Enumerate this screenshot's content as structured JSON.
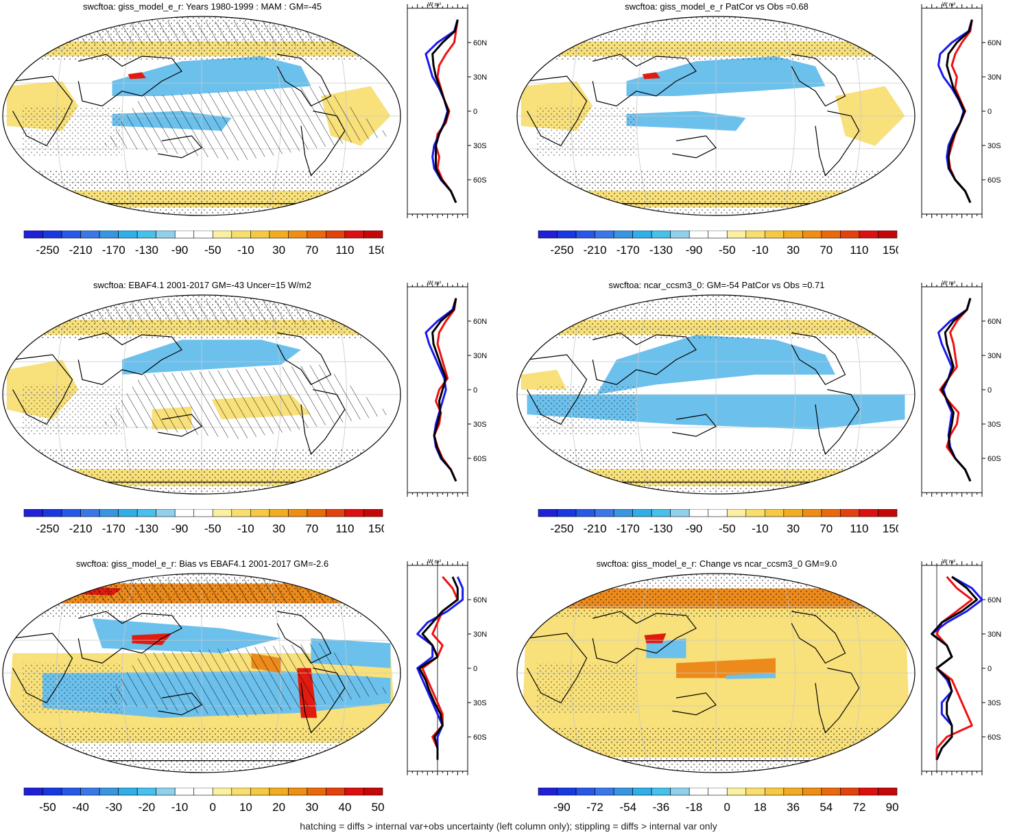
{
  "colors": {
    "scale": [
      "#2020d8",
      "#1838e0",
      "#2858e8",
      "#3a78e8",
      "#3896e0",
      "#30aee8",
      "#48c0ec",
      "#90d0ec",
      "#ffffff",
      "#ffffff",
      "#faf0a0",
      "#f8de6e",
      "#f6c844",
      "#f2ac22",
      "#ee8e12",
      "#e86a0c",
      "#e2420e",
      "#dc1010",
      "#c40808"
    ],
    "ocean_blue": "#6cc0ec",
    "land_yellow": "#f8e07a",
    "deep_orange": "#ec8a1c",
    "red": "#e01c10",
    "line_red": "#ee1010",
    "line_blue": "#1818ee",
    "line_black": "#000000",
    "grid": "#c8c8c8"
  },
  "zonal_unit": "W m²",
  "footer": "hatching = diffs > internal var+obs uncertainty (left column only); stippling = diffs > internal var only",
  "panels": [
    {
      "title": "swcftoa: giss_model_e_r: Years 1980-1999 : MAM : GM=-45",
      "map_style": "mean",
      "hatched": true,
      "colorbar_labels": [
        "-250",
        "-210",
        "-170",
        "-130",
        "-90",
        "-50",
        "-10",
        "30",
        "70",
        "110",
        "150"
      ],
      "zonal_xticks": [
        "-150",
        "-90",
        "-30"
      ],
      "zonal_xlim": [
        -150,
        30
      ],
      "zonal_yticks": [
        "60N",
        "30N",
        "0",
        "30S",
        "60S"
      ]
    },
    {
      "title": "swcftoa: giss_model_e_r PatCor vs Obs =0.68",
      "map_style": "mean",
      "hatched": false,
      "colorbar_labels": [
        "-250",
        "-210",
        "-170",
        "-130",
        "-90",
        "-50",
        "-10",
        "30",
        "70",
        "110",
        "150"
      ],
      "zonal_xticks": [
        "-150",
        "-90",
        "-30"
      ],
      "zonal_xlim": [
        -150,
        30
      ],
      "zonal_yticks": [
        "60N",
        "30N",
        "0",
        "30S",
        "60S"
      ]
    },
    {
      "title": "swcftoa: EBAF4.1 2001-2017 GM=-43 Uncer=15 W/m2",
      "map_style": "obs",
      "hatched": true,
      "colorbar_labels": [
        "-250",
        "-210",
        "-170",
        "-130",
        "-90",
        "-50",
        "-10",
        "30",
        "70",
        "110",
        "150"
      ],
      "zonal_xticks": [
        "-150",
        "-90",
        "-30"
      ],
      "zonal_xlim": [
        -150,
        30
      ],
      "zonal_yticks": [
        "60N",
        "30N",
        "0",
        "30S",
        "60S"
      ]
    },
    {
      "title": "swcftoa: ncar_ccsm3_0: GM=-54 PatCor vs Obs =0.71",
      "map_style": "ncar",
      "hatched": false,
      "colorbar_labels": [
        "-250",
        "-210",
        "-170",
        "-130",
        "-90",
        "-50",
        "-10",
        "30",
        "70",
        "110",
        "150"
      ],
      "zonal_xticks": [
        "-150",
        "-90",
        "-30"
      ],
      "zonal_xlim": [
        -150,
        30
      ],
      "zonal_yticks": [
        "60N",
        "30N",
        "0",
        "30S",
        "60S"
      ]
    },
    {
      "title": "swcftoa: giss_model_e_r: Bias vs EBAF4.1 2001-2017 GM=-2.6",
      "map_style": "bias",
      "hatched": true,
      "colorbar_labels": [
        "-50",
        "-40",
        "-30",
        "-20",
        "-10",
        "0",
        "10",
        "20",
        "30",
        "40",
        "50"
      ],
      "zonal_xticks": [
        "-30",
        "-10",
        "10",
        "30"
      ],
      "zonal_xlim": [
        -30,
        30
      ],
      "zonal_yticks": [
        "60N",
        "30N",
        "0",
        "30S",
        "60S"
      ]
    },
    {
      "title": "swcftoa: giss_model_e_r: Change vs ncar_ccsm3_0 GM=9.0",
      "map_style": "change",
      "hatched": false,
      "colorbar_labels": [
        "-90",
        "-72",
        "-54",
        "-36",
        "-18",
        "0",
        "18",
        "36",
        "54",
        "72",
        "90"
      ],
      "zonal_xticks": [
        "-10",
        "10",
        "30"
      ],
      "zonal_xlim": [
        -15,
        45
      ],
      "zonal_yticks": [
        "60N",
        "30N",
        "0",
        "30S",
        "60S"
      ]
    }
  ],
  "chart_data": [
    {
      "type": "line",
      "title": "swcftoa: giss_model_e_r: Years 1980-1999 : MAM : GM=-45",
      "xlabel": "W m²",
      "xlim": [
        -150,
        30
      ],
      "ylim": [
        -90,
        90
      ],
      "y": [
        80,
        70,
        60,
        50,
        40,
        30,
        20,
        10,
        0,
        -10,
        -20,
        -30,
        -40,
        -50,
        -60,
        -70,
        -80
      ],
      "series": [
        {
          "color": "red",
          "values": [
            0,
            -5,
            -10,
            -35,
            -55,
            -60,
            -50,
            -40,
            -25,
            -35,
            -60,
            -65,
            -55,
            -60,
            -45,
            -20,
            -5
          ]
        },
        {
          "color": "blue",
          "values": [
            0,
            -10,
            -60,
            -95,
            -85,
            -75,
            -55,
            -40,
            -30,
            -40,
            -55,
            -70,
            -75,
            -70,
            -50,
            -20,
            -5
          ]
        },
        {
          "color": "black",
          "values": [
            0,
            -8,
            -45,
            -75,
            -72,
            -65,
            -52,
            -40,
            -28,
            -38,
            -55,
            -65,
            -65,
            -65,
            -48,
            -20,
            -5
          ]
        }
      ]
    },
    {
      "type": "line",
      "title": "swcftoa: giss_model_e_r PatCor vs Obs =0.68",
      "xlabel": "W m²",
      "xlim": [
        -150,
        30
      ],
      "ylim": [
        -90,
        90
      ],
      "y": [
        80,
        70,
        60,
        50,
        40,
        30,
        20,
        10,
        0,
        -10,
        -20,
        -30,
        -40,
        -50,
        -60,
        -70,
        -80
      ],
      "series": [
        {
          "color": "red",
          "values": [
            0,
            -5,
            -30,
            -50,
            -60,
            -45,
            -50,
            -35,
            -20,
            -35,
            -50,
            -60,
            -70,
            -65,
            -50,
            -20,
            -5
          ]
        },
        {
          "color": "blue",
          "values": [
            0,
            -10,
            -60,
            -95,
            -100,
            -85,
            -60,
            -40,
            -25,
            -35,
            -55,
            -70,
            -75,
            -70,
            -50,
            -20,
            -5
          ]
        },
        {
          "color": "black",
          "values": [
            0,
            -8,
            -45,
            -70,
            -75,
            -65,
            -55,
            -38,
            -22,
            -35,
            -52,
            -65,
            -70,
            -68,
            -50,
            -20,
            -5
          ]
        }
      ]
    },
    {
      "type": "line",
      "title": "swcftoa: EBAF4.1 2001-2017 GM=-43 Uncer=15 W/m2",
      "xlabel": "W m²",
      "xlim": [
        -150,
        30
      ],
      "ylim": [
        -90,
        90
      ],
      "y": [
        80,
        70,
        60,
        50,
        40,
        30,
        20,
        10,
        0,
        -10,
        -20,
        -30,
        -40,
        -50,
        -60,
        -70,
        -80
      ],
      "series": [
        {
          "color": "red",
          "values": [
            -5,
            -10,
            -35,
            -55,
            -60,
            -50,
            -40,
            -30,
            -55,
            -65,
            -50,
            -55,
            -70,
            -60,
            -45,
            -20,
            -5
          ]
        },
        {
          "color": "blue",
          "values": [
            -5,
            -15,
            -60,
            -95,
            -85,
            -70,
            -55,
            -40,
            -35,
            -45,
            -55,
            -65,
            -70,
            -65,
            -50,
            -20,
            -5
          ]
        },
        {
          "color": "black",
          "values": [
            -5,
            -12,
            -50,
            -75,
            -72,
            -60,
            -48,
            -35,
            -45,
            -55,
            -52,
            -60,
            -70,
            -62,
            -48,
            -20,
            -5
          ]
        }
      ]
    },
    {
      "type": "line",
      "title": "swcftoa: ncar_ccsm3_0: GM=-54 PatCor vs Obs =0.71",
      "xlabel": "W m²",
      "xlim": [
        -150,
        30
      ],
      "ylim": [
        -90,
        90
      ],
      "y": [
        80,
        70,
        60,
        50,
        40,
        30,
        20,
        10,
        0,
        -10,
        -20,
        -30,
        -40,
        -50,
        -60,
        -70,
        -80
      ],
      "series": [
        {
          "color": "red",
          "values": [
            -5,
            -15,
            -45,
            -65,
            -55,
            -50,
            -45,
            -70,
            -95,
            -70,
            -40,
            -45,
            -65,
            -75,
            -50,
            -20,
            -5
          ]
        },
        {
          "color": "blue",
          "values": [
            -5,
            -15,
            -65,
            -100,
            -90,
            -75,
            -60,
            -70,
            -85,
            -75,
            -60,
            -65,
            -70,
            -65,
            -50,
            -20,
            -5
          ]
        },
        {
          "color": "black",
          "values": [
            -5,
            -15,
            -55,
            -80,
            -75,
            -65,
            -55,
            -70,
            -90,
            -72,
            -55,
            -60,
            -68,
            -68,
            -50,
            -20,
            -5
          ]
        }
      ]
    },
    {
      "type": "line",
      "title": "swcftoa: giss_model_e_r: Bias vs EBAF4.1 2001-2017 GM=-2.6",
      "xlabel": "W m²",
      "xlim": [
        -30,
        30
      ],
      "ylim": [
        -90,
        90
      ],
      "y": [
        80,
        70,
        60,
        50,
        40,
        30,
        20,
        10,
        0,
        -10,
        -20,
        -30,
        -40,
        -50,
        -60,
        -70,
        -80
      ],
      "series": [
        {
          "color": "red",
          "values": [
            5,
            15,
            20,
            5,
            0,
            -5,
            5,
            0,
            -15,
            -10,
            -5,
            0,
            5,
            5,
            -5,
            0,
            0
          ]
        },
        {
          "color": "blue",
          "values": [
            20,
            25,
            25,
            10,
            -10,
            -20,
            -5,
            -5,
            -20,
            -15,
            -10,
            -5,
            0,
            5,
            0,
            0,
            0
          ]
        },
        {
          "color": "black",
          "values": [
            15,
            20,
            20,
            5,
            -5,
            -15,
            -5,
            0,
            -18,
            -12,
            -8,
            -3,
            3,
            5,
            -3,
            0,
            0
          ]
        }
      ]
    },
    {
      "type": "line",
      "title": "swcftoa: giss_model_e_r: Change vs ncar_ccsm3_0 GM=9.0",
      "xlabel": "W m²",
      "xlim": [
        -15,
        45
      ],
      "ylim": [
        -90,
        90
      ],
      "y": [
        80,
        70,
        60,
        50,
        40,
        30,
        20,
        10,
        0,
        -10,
        -20,
        -30,
        -40,
        -50,
        -60,
        -70,
        -80
      ],
      "series": [
        {
          "color": "red",
          "values": [
            10,
            20,
            35,
            20,
            5,
            0,
            10,
            15,
            0,
            15,
            20,
            25,
            30,
            35,
            10,
            0,
            0
          ]
        },
        {
          "color": "blue",
          "values": [
            15,
            35,
            45,
            30,
            10,
            -5,
            10,
            15,
            0,
            10,
            15,
            5,
            5,
            15,
            15,
            5,
            0
          ]
        },
        {
          "color": "black",
          "values": [
            15,
            30,
            40,
            25,
            5,
            -5,
            10,
            15,
            0,
            12,
            15,
            10,
            10,
            15,
            15,
            5,
            0
          ]
        }
      ]
    }
  ]
}
